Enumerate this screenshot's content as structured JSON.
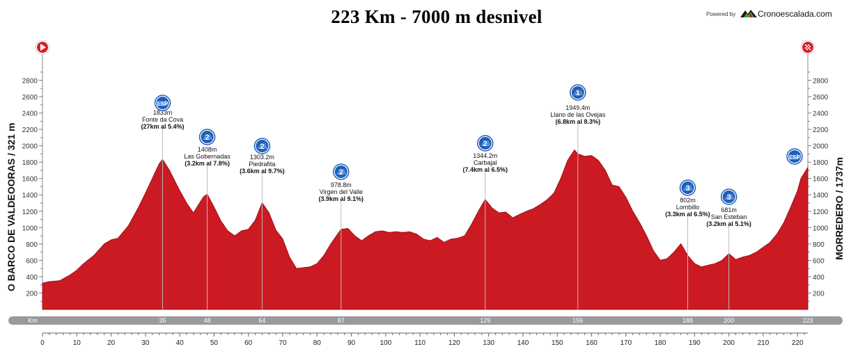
{
  "header": {
    "title": "223 Km - 7000 m desnivel",
    "powered_by": "Powered by",
    "brand": "Cronoescalada.com"
  },
  "start": {
    "name": "O BARCO DE VALDEOORAS / 321 m",
    "icon": "start-flag-icon"
  },
  "finish": {
    "name": "MORREDERO / 1737m",
    "icon": "finish-flag-icon"
  },
  "colors": {
    "profile": "#cc1a22",
    "profile_edge": "#9e1118",
    "km_bar": "#9a9a9a",
    "icon_blue": "#1f5fb8",
    "finish_flag": "#d61f26"
  },
  "km_bar_label": "Km",
  "chart_data": {
    "type": "area",
    "title": "223 Km - 7000 m desnivel",
    "xlabel": "Km",
    "ylabel": "",
    "xlim": [
      0,
      223
    ],
    "ylim": [
      0,
      2950
    ],
    "x_ticks": [
      0,
      10,
      20,
      30,
      40,
      50,
      60,
      70,
      80,
      90,
      100,
      110,
      120,
      130,
      140,
      150,
      160,
      170,
      180,
      190,
      200,
      210,
      220
    ],
    "y_ticks": [
      200,
      400,
      600,
      800,
      1000,
      1200,
      1400,
      1600,
      1800,
      2000,
      2200,
      2400,
      2600,
      2800
    ],
    "series": [
      {
        "x": [
          0,
          2,
          5,
          8,
          10,
          12,
          15,
          18,
          20,
          22,
          25,
          28,
          30,
          32,
          34,
          35,
          37,
          40,
          42,
          44,
          45,
          47,
          48,
          50,
          52,
          54,
          56,
          58,
          60,
          62,
          64,
          66,
          68,
          70,
          72,
          74,
          76,
          78,
          80,
          82,
          84,
          86,
          87,
          89,
          91,
          93,
          95,
          97,
          99,
          101,
          103,
          105,
          107,
          109,
          111,
          113,
          115,
          117,
          119,
          121,
          123,
          125,
          127,
          129,
          131,
          133,
          135,
          137,
          139,
          141,
          143,
          145,
          147,
          149,
          151,
          153,
          155,
          156,
          158,
          160,
          162,
          164,
          166,
          168,
          170,
          172,
          174,
          176,
          178,
          180,
          182,
          184,
          186,
          188,
          190,
          192,
          194,
          196,
          198,
          200,
          202,
          204,
          206,
          208,
          210,
          212,
          214,
          216,
          218,
          220,
          221,
          223
        ],
        "y": [
          321,
          340,
          350,
          420,
          480,
          560,
          660,
          800,
          850,
          870,
          1020,
          1250,
          1420,
          1600,
          1780,
          1833,
          1700,
          1450,
          1300,
          1180,
          1250,
          1380,
          1408,
          1250,
          1080,
          960,
          900,
          960,
          980,
          1090,
          1303,
          1180,
          970,
          860,
          640,
          500,
          510,
          520,
          560,
          660,
          800,
          920,
          979,
          990,
          900,
          840,
          900,
          950,
          960,
          940,
          950,
          940,
          950,
          920,
          860,
          840,
          880,
          820,
          860,
          870,
          900,
          1040,
          1200,
          1344,
          1240,
          1180,
          1190,
          1120,
          1160,
          1200,
          1230,
          1280,
          1340,
          1420,
          1600,
          1820,
          1949,
          1900,
          1870,
          1880,
          1820,
          1700,
          1520,
          1500,
          1370,
          1200,
          1060,
          900,
          720,
          600,
          620,
          700,
          802,
          660,
          560,
          520,
          540,
          560,
          600,
          681,
          610,
          640,
          660,
          700,
          760,
          820,
          920,
          1060,
          1250,
          1450,
          1600,
          1737
        ]
      }
    ],
    "climbs": [
      {
        "km": 35,
        "altitude": "1833m",
        "name": "Fonte da Cova",
        "detail": "(27km al 5.4%)",
        "category": "ESP"
      },
      {
        "km": 48,
        "altitude": "1408m",
        "name": "Las Gobernadas",
        "detail": "(3.2km al 7.8%)",
        "category": "2"
      },
      {
        "km": 64,
        "altitude": "1303.2m",
        "name": "Piedrafita",
        "detail": "(3.6km al 9.7%)",
        "category": "2"
      },
      {
        "km": 87,
        "altitude": "978.8m",
        "name": "Virgen del Valle",
        "detail": "(3.9km al 9.1%)",
        "category": "2"
      },
      {
        "km": 129,
        "altitude": "1344.2m",
        "name": "Carbajal",
        "detail": "(7.4km al 6.5%)",
        "category": "2"
      },
      {
        "km": 156,
        "altitude": "1949.4m",
        "name": "Llano de las Ovejas",
        "detail": "(6.8km al 8.3%)",
        "category": "1"
      },
      {
        "km": 188,
        "altitude": "802m",
        "name": "Lombillo",
        "detail": "(3.3km al 6.5%)",
        "category": "3"
      },
      {
        "km": 200,
        "altitude": "681m",
        "name": "San Esteban",
        "detail": "(3.2km al 5.1%)",
        "category": "3"
      }
    ],
    "km_bar_markers": [
      "35",
      "48",
      "64",
      "87",
      "129",
      "156",
      "188",
      "200",
      "223"
    ],
    "km_bar_marker_km": [
      35,
      48,
      64,
      87,
      129,
      156,
      188,
      200,
      223
    ],
    "finish_climb_category": "ESP",
    "grid": false,
    "legend": "none"
  }
}
